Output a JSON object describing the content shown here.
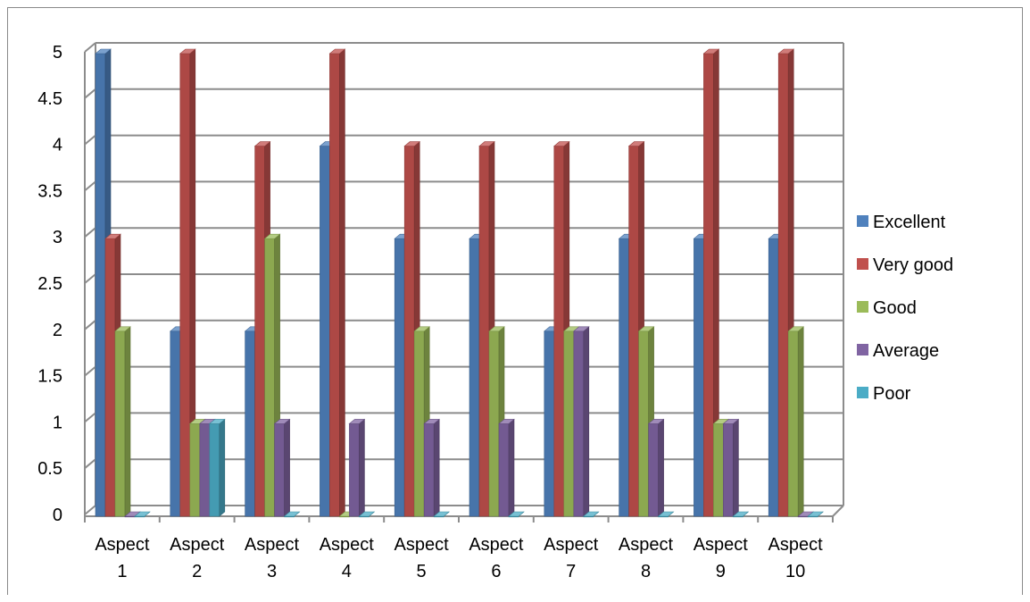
{
  "chart_data": {
    "type": "bar",
    "categories": [
      [
        "Aspect",
        "1"
      ],
      [
        "Aspect",
        "2"
      ],
      [
        "Aspect",
        "3"
      ],
      [
        "Aspect",
        "4"
      ],
      [
        "Aspect",
        "5"
      ],
      [
        "Aspect",
        "6"
      ],
      [
        "Aspect",
        "7"
      ],
      [
        "Aspect",
        "8"
      ],
      [
        "Aspect",
        "9"
      ],
      [
        "Aspect",
        "10"
      ]
    ],
    "series": [
      {
        "name": "Excellent",
        "color": "#4F81BD",
        "values": [
          5,
          2,
          2,
          4,
          3,
          3,
          2,
          3,
          3,
          3
        ]
      },
      {
        "name": "Very good",
        "color": "#C0504D",
        "values": [
          3,
          5,
          4,
          5,
          4,
          4,
          4,
          4,
          5,
          5
        ]
      },
      {
        "name": "Good",
        "color": "#9BBB59",
        "values": [
          2,
          1,
          3,
          0,
          2,
          2,
          2,
          2,
          1,
          2
        ]
      },
      {
        "name": "Average",
        "color": "#8064A2",
        "values": [
          0,
          1,
          1,
          1,
          1,
          1,
          2,
          1,
          1,
          0
        ]
      },
      {
        "name": "Poor",
        "color": "#4BACC6",
        "values": [
          0,
          1,
          0,
          0,
          0,
          0,
          0,
          0,
          0,
          0
        ]
      }
    ],
    "ylim": [
      0,
      5
    ],
    "yticks": [
      "0",
      "0.5",
      "1",
      "1.5",
      "2",
      "2.5",
      "3",
      "3.5",
      "4",
      "4.5",
      "5"
    ],
    "grid": true,
    "legend": "right",
    "style": "3d-clustered-column"
  }
}
